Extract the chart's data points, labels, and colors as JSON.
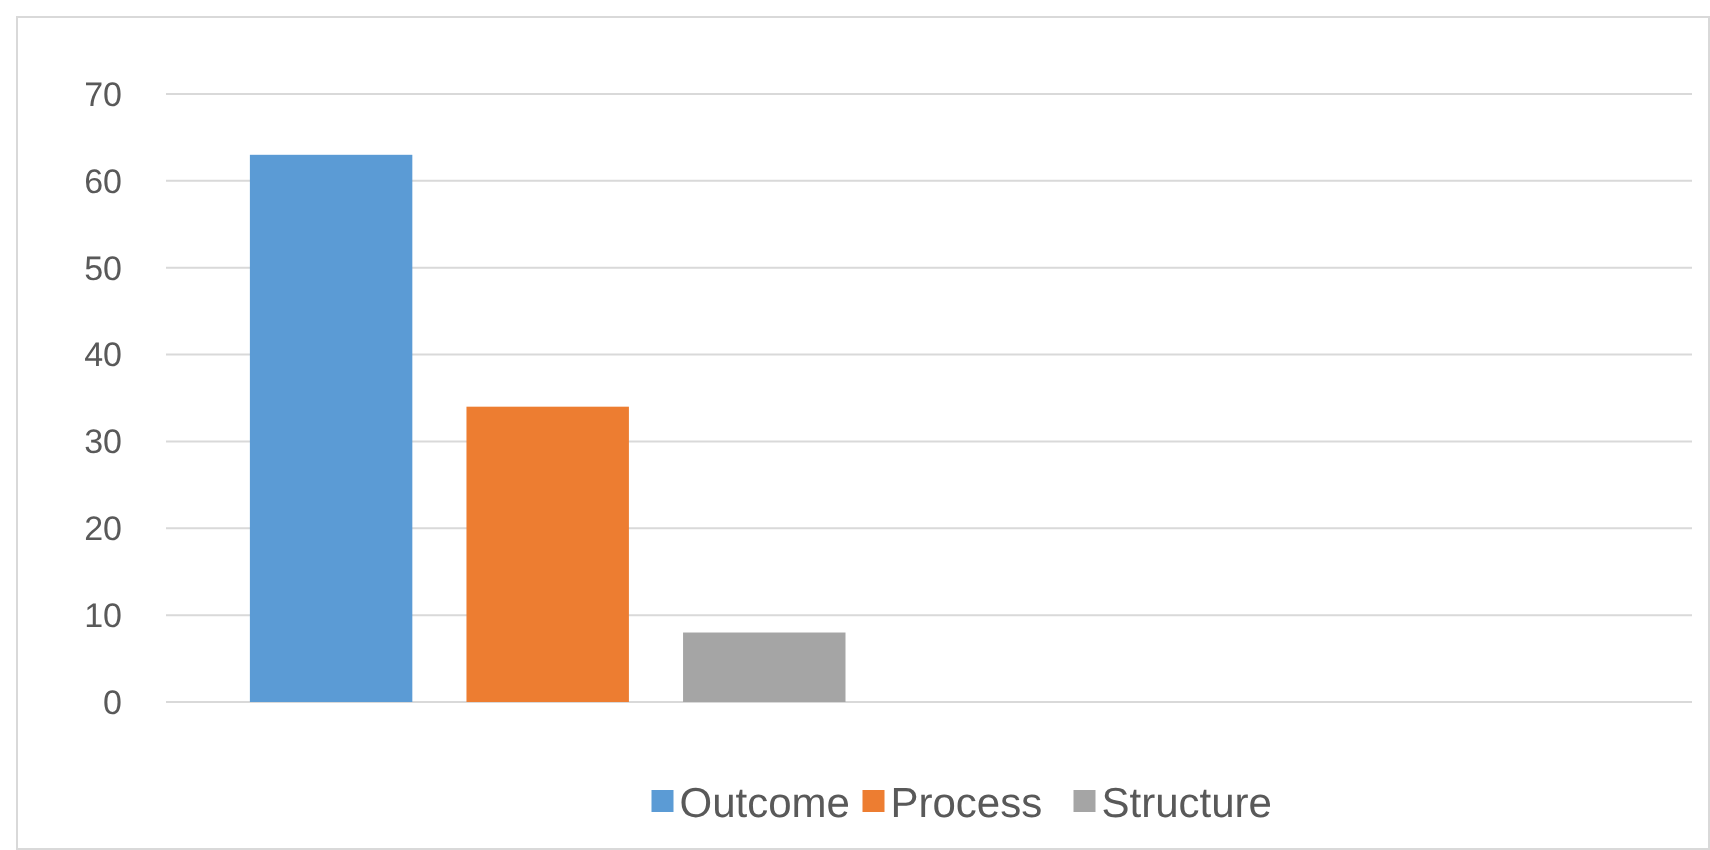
{
  "chart_data": {
    "type": "bar",
    "categories": [
      null,
      null
    ],
    "series": [
      {
        "name": "Outcome",
        "color": "#5b9bd5",
        "values": [
          63,
          null
        ]
      },
      {
        "name": "Process",
        "color": "#ed7d31",
        "values": [
          34,
          null
        ]
      },
      {
        "name": "Structure",
        "color": "#a5a5a5",
        "values": [
          8,
          null
        ]
      }
    ],
    "ylim": [
      0,
      70
    ],
    "yticks": [
      0,
      10,
      20,
      30,
      40,
      50,
      60,
      70
    ],
    "grid": "y",
    "legend": "bottom"
  }
}
